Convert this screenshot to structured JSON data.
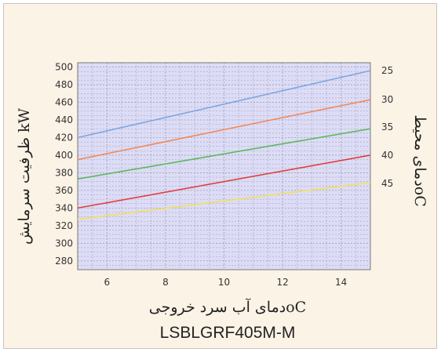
{
  "chart_data": {
    "type": "line",
    "title": "",
    "model": "LSBLGRF405M-M",
    "xlabel": "oCدمای آب سرد خروجی",
    "ylabel": "kW ظرفیت سرمایش",
    "right_title": "oCدمای محیط",
    "xlim": [
      5,
      15
    ],
    "ylim": [
      270,
      505
    ],
    "xticks": [
      6,
      8,
      10,
      12,
      14
    ],
    "yticks": [
      280,
      300,
      320,
      340,
      360,
      380,
      400,
      420,
      440,
      460,
      480,
      500
    ],
    "grid": true,
    "series": [
      {
        "name": "25",
        "color": "#7ea6e0",
        "x": [
          5,
          15
        ],
        "values": [
          420,
          496
        ]
      },
      {
        "name": "30",
        "color": "#f08a5a",
        "x": [
          5,
          15
        ],
        "values": [
          395,
          463
        ]
      },
      {
        "name": "35",
        "color": "#5cb85c",
        "x": [
          5,
          15
        ],
        "values": [
          373,
          430
        ]
      },
      {
        "name": "40",
        "color": "#e0403c",
        "x": [
          5,
          15
        ],
        "values": [
          340,
          400
        ]
      },
      {
        "name": "45",
        "color": "#f0e060",
        "x": [
          5,
          15
        ],
        "values": [
          327,
          369
        ]
      }
    ],
    "right_labels": [
      {
        "text": "25",
        "y": 496
      },
      {
        "text": "30",
        "y": 463
      },
      {
        "text": "35",
        "y": 432
      },
      {
        "text": "40",
        "y": 400
      },
      {
        "text": "45",
        "y": 368
      }
    ]
  }
}
